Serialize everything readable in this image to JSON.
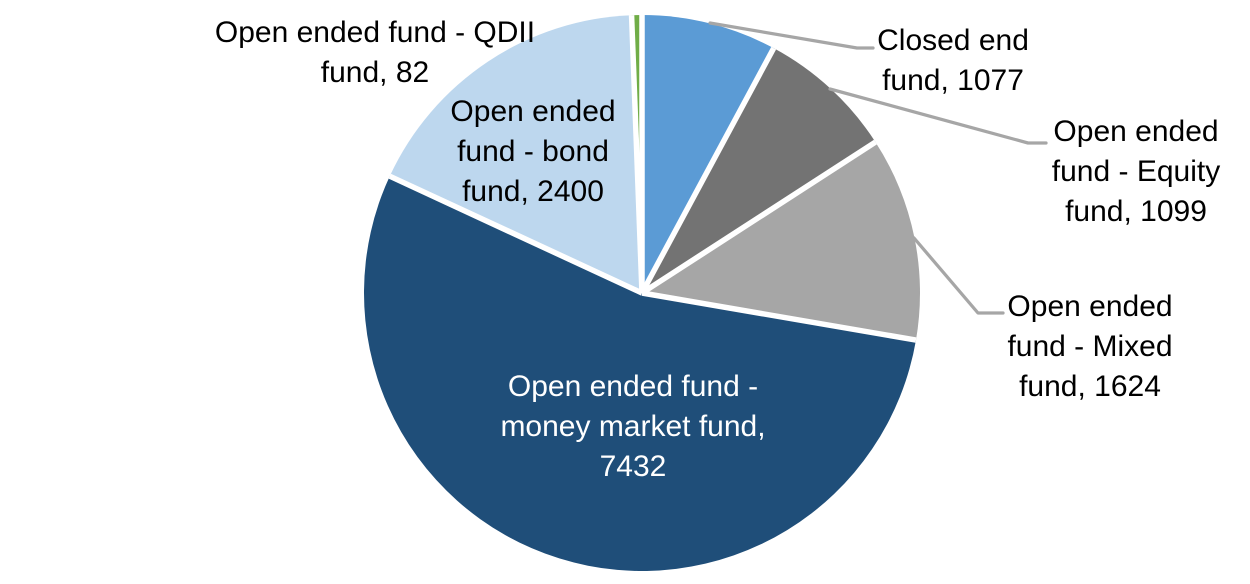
{
  "chart_data": {
    "type": "pie",
    "title": "",
    "total": 13714,
    "direction": "clockwise",
    "start_angle_deg": 0,
    "background_color": "#FFFFFF",
    "separator_color": "#FFFFFF",
    "leader_line_color": "#A6A6A6",
    "slices": [
      {
        "id": "closed-end-fund",
        "name": "Closed end fund",
        "value": 1077,
        "color": "#5B9BD5",
        "label": "Closed end\nfund, 1077",
        "label_placement": "outside",
        "label_color": "#000000",
        "leader_line": true
      },
      {
        "id": "equity-fund",
        "name": "Open ended fund - Equity fund",
        "value": 1099,
        "color": "#737373",
        "label": "Open ended\nfund - Equity\nfund, 1099",
        "label_placement": "outside",
        "label_color": "#000000",
        "leader_line": true
      },
      {
        "id": "mixed-fund",
        "name": "Open ended fund - Mixed fund",
        "value": 1624,
        "color": "#A6A6A6",
        "label": "Open ended\nfund - Mixed\nfund, 1624",
        "label_placement": "outside",
        "label_color": "#000000",
        "leader_line": true
      },
      {
        "id": "money-market-fund",
        "name": "Open ended fund - money market fund",
        "value": 7432,
        "color": "#1F4E79",
        "label": "Open ended fund -\nmoney market fund,\n7432",
        "label_placement": "inside",
        "label_color": "#FFFFFF",
        "leader_line": false
      },
      {
        "id": "bond-fund",
        "name": "Open ended fund - bond fund",
        "value": 2400,
        "color": "#BDD7EE",
        "label": "Open ended\nfund - bond\nfund, 2400",
        "label_placement": "inside",
        "label_color": "#000000",
        "leader_line": false
      },
      {
        "id": "qdii-fund",
        "name": "Open ended fund - QDII fund",
        "value": 82,
        "color": "#70AD47",
        "label": "Open ended fund - QDII\nfund, 82",
        "label_placement": "outside",
        "label_color": "#000000",
        "leader_line": false
      }
    ]
  }
}
